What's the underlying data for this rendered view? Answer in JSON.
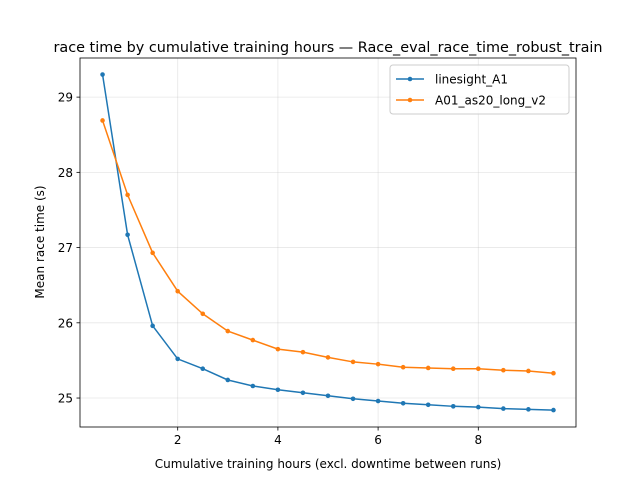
{
  "chart_data": {
    "type": "line",
    "title": "race time by cumulative training hours — Race_eval_race_time_robust_train",
    "xlabel": "Cumulative training hours (excl. downtime between runs)",
    "ylabel": "Mean race time (s)",
    "xlim": [
      0.05,
      9.95
    ],
    "ylim": [
      24.615,
      29.52
    ],
    "xticks": [
      2,
      4,
      6,
      8
    ],
    "yticks": [
      25,
      26,
      27,
      28,
      29
    ],
    "grid": true,
    "legend": "top-right",
    "x": [
      0.5,
      1.0,
      1.5,
      2.0,
      2.5,
      3.0,
      3.5,
      4.0,
      4.5,
      5.0,
      5.5,
      6.0,
      6.5,
      7.0,
      7.5,
      8.0,
      8.5,
      9.0,
      9.5
    ],
    "series": [
      {
        "name": "linesight_A1",
        "color": "#1f77b4",
        "values": [
          29.3,
          27.17,
          25.96,
          25.52,
          25.39,
          25.24,
          25.16,
          25.11,
          25.07,
          25.03,
          24.99,
          24.96,
          24.93,
          24.91,
          24.89,
          24.88,
          24.86,
          24.85,
          24.84
        ]
      },
      {
        "name": "A01_as20_long_v2",
        "color": "#ff7f0e",
        "values": [
          28.69,
          27.7,
          26.93,
          26.42,
          26.12,
          25.89,
          25.77,
          25.65,
          25.61,
          25.54,
          25.48,
          25.45,
          25.41,
          25.4,
          25.39,
          25.39,
          25.37,
          25.36,
          25.33
        ]
      }
    ]
  }
}
